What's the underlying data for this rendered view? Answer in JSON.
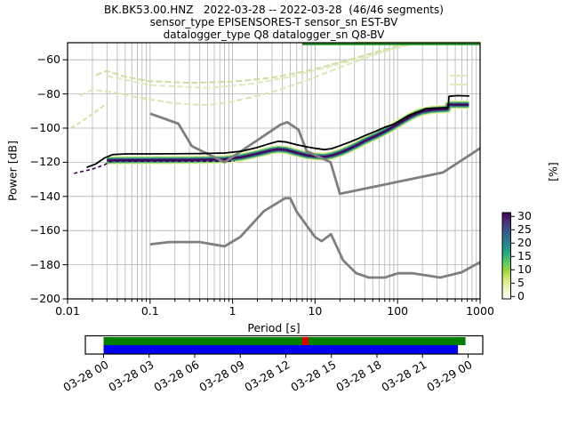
{
  "title": {
    "line1": "BK.BK53.00.HNZ   2022-03-28 -- 2022-03-28  (46/46 segments)",
    "line2": "sensor_type EPISENSORES-T sensor_sn EST-BV",
    "line3": "datalogger_type Q8 datalogger_sn Q8-BV"
  },
  "axes": {
    "x": {
      "label": "Period [s]",
      "tick_labels": [
        "0.01",
        "0.1",
        "1",
        "10",
        "100",
        "1000"
      ]
    },
    "y": {
      "label": "Power [dB]",
      "tick_labels": [
        "−60",
        "−80",
        "−100",
        "−120",
        "−140",
        "−160",
        "−180",
        "−200"
      ]
    }
  },
  "colorbar": {
    "label": "[%]",
    "tick_values": [
      30,
      25,
      20,
      15,
      10,
      5,
      0
    ],
    "tick_labels": [
      "30",
      "25",
      "20",
      "15",
      "10",
      "5",
      "0"
    ],
    "gradient": [
      [
        0,
        "#ffffff"
      ],
      [
        0.1,
        "#f4f8c5"
      ],
      [
        0.22,
        "#d9e97f"
      ],
      [
        0.32,
        "#9ed93c"
      ],
      [
        0.42,
        "#5ec962"
      ],
      [
        0.52,
        "#28ae80"
      ],
      [
        0.6,
        "#21918c"
      ],
      [
        0.7,
        "#2c728e"
      ],
      [
        0.8,
        "#3b528b"
      ],
      [
        0.9,
        "#472d7b"
      ],
      [
        1,
        "#440154"
      ]
    ]
  },
  "timeline": {
    "tick_labels": [
      "03-28 00",
      "03-28 03",
      "03-28 06",
      "03-28 09",
      "03-28 12",
      "03-28 15",
      "03-28 18",
      "03-28 21",
      "03-29 00"
    ],
    "bars": [
      {
        "name": "coverage-bar",
        "color": "#008000",
        "start_h": 0,
        "end_h": 23.83,
        "row": "top"
      },
      {
        "name": "gap-bar",
        "color": "#e00000",
        "start_h": 13.08,
        "end_h": 13.49,
        "row": "top"
      },
      {
        "name": "processed-bar",
        "color": "#0000ee",
        "start_h": 0,
        "end_h": 23.33,
        "row": "bottom"
      }
    ]
  },
  "chart_data": {
    "type": "line",
    "title": "PPSD BK.BK53.00.HNZ 2022-03-28, 46/46 segments",
    "xlabel": "Period [s]",
    "ylabel": "Power [dB]",
    "xscale": "log",
    "xlim": [
      0.01,
      1000
    ],
    "ylim": [
      -200,
      -50
    ],
    "x_ticks": [
      0.01,
      0.1,
      1,
      10,
      100,
      1000
    ],
    "y_ticks": [
      -60,
      -80,
      -100,
      -120,
      -140,
      -160,
      -180,
      -200
    ],
    "colorbar_range_pct": [
      0,
      30
    ],
    "series": [
      {
        "name": "psd-mean",
        "color": "#000000",
        "width": 1.8,
        "dash": "",
        "points": [
          [
            0.017,
            -123
          ],
          [
            0.022,
            -121
          ],
          [
            0.028,
            -117.5
          ],
          [
            0.035,
            -115.5
          ],
          [
            0.05,
            -115.1
          ],
          [
            0.1,
            -115.1
          ],
          [
            0.4,
            -114.9
          ],
          [
            0.8,
            -114.6
          ],
          [
            1.3,
            -113.5
          ],
          [
            2,
            -111.3
          ],
          [
            3,
            -108.7
          ],
          [
            3.6,
            -107.7
          ],
          [
            4.5,
            -108.2
          ],
          [
            6,
            -109.8
          ],
          [
            8,
            -111
          ],
          [
            10,
            -111.8
          ],
          [
            13,
            -112.6
          ],
          [
            16,
            -112
          ],
          [
            20,
            -110.3
          ],
          [
            26,
            -108.3
          ],
          [
            33,
            -106.2
          ],
          [
            42,
            -104
          ],
          [
            55,
            -101.7
          ],
          [
            70,
            -99.5
          ],
          [
            88,
            -97.9
          ],
          [
            110,
            -95.3
          ],
          [
            135,
            -92.7
          ],
          [
            165,
            -91
          ],
          [
            190,
            -90
          ],
          [
            220,
            -88.6
          ],
          [
            300,
            -88.3
          ],
          [
            395,
            -88
          ],
          [
            410,
            -87.8
          ],
          [
            420,
            -81.4
          ],
          [
            520,
            -81
          ],
          [
            740,
            -81.2
          ]
        ]
      },
      {
        "name": "psd-mode",
        "color": "#440154",
        "width": 1.6,
        "dash": "4 3",
        "points": [
          [
            0.012,
            -126.5
          ],
          [
            0.02,
            -124
          ],
          [
            0.028,
            -121.5
          ],
          [
            0.033,
            -119.6
          ],
          [
            0.04,
            -119.4
          ],
          [
            1.05,
            -119.4
          ]
        ]
      },
      {
        "name": "noise-model-high-nhnm",
        "color": "#7f7f7f",
        "width": 2.8,
        "dash": "",
        "points": [
          [
            0.1,
            -91.5
          ],
          [
            0.22,
            -97.4
          ],
          [
            0.32,
            -110.5
          ],
          [
            0.8,
            -120
          ],
          [
            3.8,
            -98
          ],
          [
            4.6,
            -96.5
          ],
          [
            6.3,
            -101
          ],
          [
            7.9,
            -113.5
          ],
          [
            15.4,
            -120
          ],
          [
            20,
            -138.5
          ],
          [
            354.8,
            -126
          ],
          [
            1000,
            -111.8
          ]
        ]
      },
      {
        "name": "noise-model-low-nlnm",
        "color": "#7f7f7f",
        "width": 2.8,
        "dash": "",
        "points": [
          [
            0.1,
            -168
          ],
          [
            0.17,
            -166.7
          ],
          [
            0.4,
            -166.7
          ],
          [
            0.8,
            -169.2
          ],
          [
            1.24,
            -163.7
          ],
          [
            2.4,
            -148.6
          ],
          [
            4.3,
            -141.1
          ],
          [
            5,
            -141.1
          ],
          [
            6,
            -149
          ],
          [
            10,
            -163.8
          ],
          [
            12,
            -166.2
          ],
          [
            15.6,
            -162.1
          ],
          [
            21.9,
            -177.5
          ],
          [
            31.6,
            -185
          ],
          [
            45,
            -187.5
          ],
          [
            70,
            -187.5
          ],
          [
            101,
            -185
          ],
          [
            154,
            -185
          ],
          [
            328,
            -187.5
          ],
          [
            600,
            -184.4
          ],
          [
            1000,
            -178.5
          ]
        ]
      },
      {
        "name": "transient-trace-1",
        "color": "#ccdf9e",
        "width": 2,
        "dash": "7 3",
        "points": [
          [
            0.022,
            -69
          ],
          [
            0.03,
            -66.5
          ],
          [
            0.05,
            -70
          ],
          [
            0.1,
            -72.5
          ],
          [
            0.3,
            -73.5
          ],
          [
            1,
            -72.8
          ],
          [
            3,
            -70.5
          ],
          [
            8,
            -66.5
          ],
          [
            20,
            -61.5
          ],
          [
            50,
            -56
          ],
          [
            100,
            -52
          ],
          [
            140,
            -50.5
          ]
        ]
      },
      {
        "name": "transient-trace-2",
        "color": "#d8e8b4",
        "width": 2,
        "dash": "7 3",
        "points": [
          [
            0.014,
            -81
          ],
          [
            0.02,
            -77.5
          ],
          [
            0.035,
            -79
          ],
          [
            0.07,
            -82
          ],
          [
            0.2,
            -85.5
          ],
          [
            0.5,
            -86.5
          ],
          [
            1,
            -84.5
          ],
          [
            3,
            -79
          ],
          [
            8,
            -72
          ],
          [
            20,
            -64.5
          ],
          [
            60,
            -56
          ],
          [
            130,
            -51
          ]
        ]
      },
      {
        "name": "transient-trace-3",
        "color": "#dcecbc",
        "width": 2,
        "dash": "7 3",
        "points": [
          [
            0.03,
            -69.5
          ],
          [
            0.1,
            -74.8
          ],
          [
            0.5,
            -76.5
          ],
          [
            1.5,
            -74.5
          ],
          [
            5,
            -70
          ],
          [
            15,
            -64
          ],
          [
            40,
            -58.5
          ],
          [
            90,
            -53.5
          ],
          [
            150,
            -51
          ]
        ]
      },
      {
        "name": "transient-trace-4",
        "color": "#cfe2a4",
        "width": 2,
        "dash": "5 3",
        "points": [
          [
            0.011,
            -100
          ],
          [
            0.015,
            -96
          ],
          [
            0.021,
            -91
          ],
          [
            0.028,
            -86.5
          ]
        ]
      },
      {
        "name": "clipped-top-green-line",
        "color": "#1e8a1e",
        "width": 3,
        "dash": "",
        "points": [
          [
            7,
            -50.6
          ],
          [
            1000,
            -50.6
          ]
        ]
      },
      {
        "name": "clipped-top-pale-line",
        "color": "#e3f0ba",
        "width": 1.5,
        "dash": "",
        "points": [
          [
            30,
            -49.6
          ],
          [
            1000,
            -49.6
          ]
        ]
      },
      {
        "name": "outlier-dash-1",
        "color": "#dcedba",
        "width": 2,
        "dash": "",
        "points": [
          [
            430,
            -69.3
          ],
          [
            700,
            -69.3
          ]
        ]
      },
      {
        "name": "outlier-dash-2",
        "color": "#dcedba",
        "width": 2,
        "dash": "",
        "points": [
          [
            430,
            -74.5
          ],
          [
            700,
            -74.5
          ]
        ]
      }
    ],
    "histogram_band": {
      "description": "high-probability PPSD histogram band, center line in dB vs period s",
      "center": [
        [
          0.03,
          -118.9
        ],
        [
          0.04,
          -118.8
        ],
        [
          0.3,
          -118.6
        ],
        [
          0.8,
          -118.3
        ],
        [
          1.3,
          -117
        ],
        [
          2,
          -115
        ],
        [
          3,
          -112.9
        ],
        [
          3.6,
          -112.4
        ],
        [
          4.5,
          -112.8
        ],
        [
          6,
          -114.5
        ],
        [
          8,
          -116
        ],
        [
          10,
          -116.5
        ],
        [
          13,
          -116.8
        ],
        [
          16,
          -116
        ],
        [
          20,
          -114.5
        ],
        [
          25,
          -112.5
        ],
        [
          32,
          -110
        ],
        [
          40,
          -107.5
        ],
        [
          55,
          -104.5
        ],
        [
          70,
          -102
        ],
        [
          90,
          -99
        ],
        [
          110,
          -96.5
        ],
        [
          140,
          -93.5
        ],
        [
          170,
          -91.5
        ],
        [
          200,
          -90.3
        ],
        [
          260,
          -89.3
        ],
        [
          330,
          -89
        ],
        [
          400,
          -88.8
        ],
        [
          415,
          -86.5
        ],
        [
          430,
          -86.3
        ],
        [
          730,
          -86.3
        ]
      ],
      "layers": [
        {
          "pct": 2,
          "color": "#eef3c3",
          "width": 10
        },
        {
          "pct": 6,
          "color": "#b8de72",
          "width": 8
        },
        {
          "pct": 10,
          "color": "#56b567",
          "width": 6.4
        },
        {
          "pct": 15,
          "color": "#21918c",
          "width": 5
        },
        {
          "pct": 22,
          "color": "#3b528b",
          "width": 3.4
        },
        {
          "pct": 30,
          "color": "#440154",
          "width": 2
        }
      ]
    }
  }
}
